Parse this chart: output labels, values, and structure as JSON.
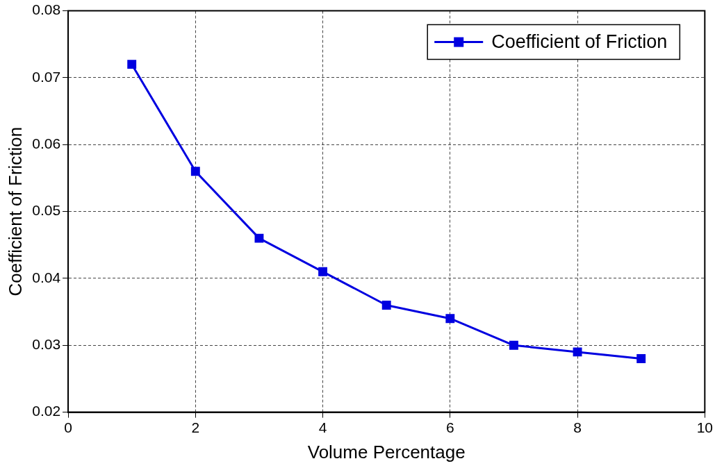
{
  "chart_data": {
    "type": "line",
    "xlabel": "Volume Percentage",
    "ylabel": "Coefficient of Friction",
    "x": [
      1,
      2,
      3,
      4,
      5,
      6,
      7,
      8,
      9
    ],
    "series": [
      {
        "name": "Coefficient of Friction",
        "color": "#0000e0",
        "values": [
          0.072,
          0.056,
          0.046,
          0.041,
          0.036,
          0.034,
          0.03,
          0.029,
          0.028
        ]
      }
    ],
    "xlim": [
      0,
      10
    ],
    "xticks": [
      0,
      2,
      4,
      6,
      8,
      10
    ],
    "ylim": [
      0.02,
      0.08
    ],
    "yticks": [
      0.02,
      0.03,
      0.04,
      0.05,
      0.06,
      0.07,
      0.08
    ],
    "grid": true,
    "legend": "top right",
    "marker": "square",
    "line_style": "solid"
  }
}
